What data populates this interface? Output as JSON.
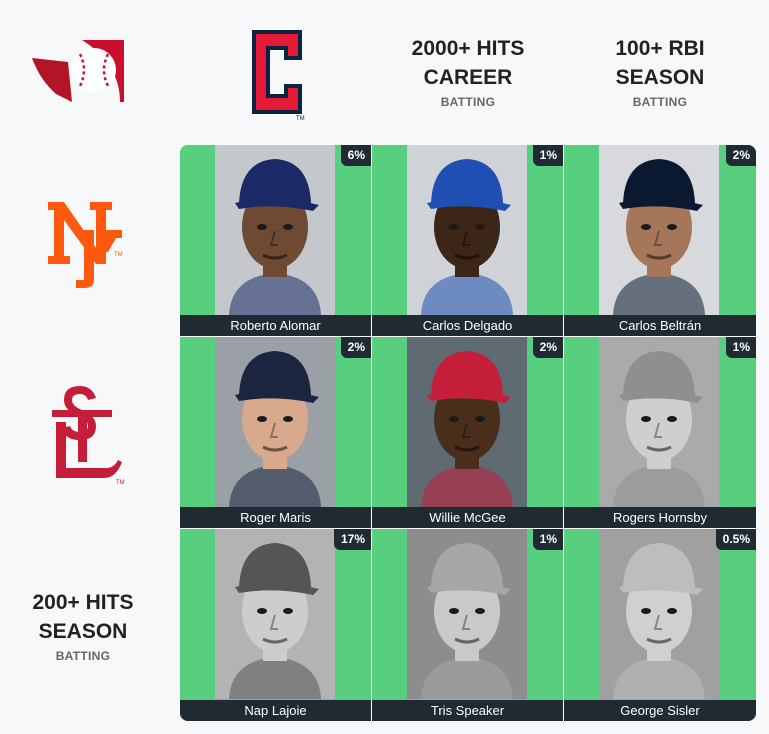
{
  "columns": [
    {
      "team": "Cleveland Guardians",
      "logo_icon": "guardians-c-logo-icon",
      "color": "#c8102e"
    },
    {
      "title_line1": "2000+ HITS",
      "title_line2": "CAREER",
      "sub": "BATTING"
    },
    {
      "title_line1": "100+ RBI",
      "title_line2": "SEASON",
      "sub": "BATTING"
    }
  ],
  "rows": [
    {
      "team": "New York Mets",
      "logo_icon": "mets-ny-logo-icon",
      "color": "#ff5910"
    },
    {
      "team": "St. Louis Cardinals",
      "logo_icon": "cardinals-stl-logo-icon",
      "color": "#c41e3a"
    },
    {
      "title_line1": "200+ HITS",
      "title_line2": "SEASON",
      "sub": "BATTING"
    }
  ],
  "app_logo_icon": "immaculate-grid-logo-icon",
  "cells": [
    [
      {
        "name": "Roberto Alomar",
        "pct": "6%",
        "bg": "#c4c8cd",
        "skin": "#6e4a33",
        "cap": "#1b2a66",
        "hair": "#1a1a1a"
      },
      {
        "name": "Carlos Delgado",
        "pct": "1%",
        "bg": "#cfd2d6",
        "skin": "#3b2618",
        "cap": "#1f4fb3",
        "hair": "#111"
      },
      {
        "name": "Carlos Beltrán",
        "pct": "2%",
        "bg": "#d7d9dc",
        "skin": "#a6765a",
        "cap": "#0a1930",
        "hair": "#111"
      }
    ],
    [
      {
        "name": "Roger Maris",
        "pct": "2%",
        "bg": "#9aa0a6",
        "skin": "#d8a98c",
        "cap": "#1b2540",
        "hair": "#c8a062"
      },
      {
        "name": "Willie McGee",
        "pct": "2%",
        "bg": "#5f6a72",
        "skin": "#4a2e1c",
        "cap": "#c41e3a",
        "hair": "#111"
      },
      {
        "name": "Rogers Hornsby",
        "pct": "1%",
        "bg": "#aaaaaa",
        "skin": "#cfcfcf",
        "cap": "#8f8f8f",
        "hair": "#333"
      }
    ],
    [
      {
        "name": "Nap Lajoie",
        "pct": "17%",
        "bg": "#b3b3b3",
        "skin": "#cdcdcd",
        "cap": "#555555",
        "hair": "#222"
      },
      {
        "name": "Tris Speaker",
        "pct": "1%",
        "bg": "#8d8d8d",
        "skin": "#c9c9c9",
        "cap": "#a7a7a7",
        "hair": "#333"
      },
      {
        "name": "George Sisler",
        "pct": "0.5%",
        "bg": "#a0a0a0",
        "skin": "#d0d0d0",
        "cap": "#bdbdbd",
        "hair": "#333"
      }
    ]
  ]
}
